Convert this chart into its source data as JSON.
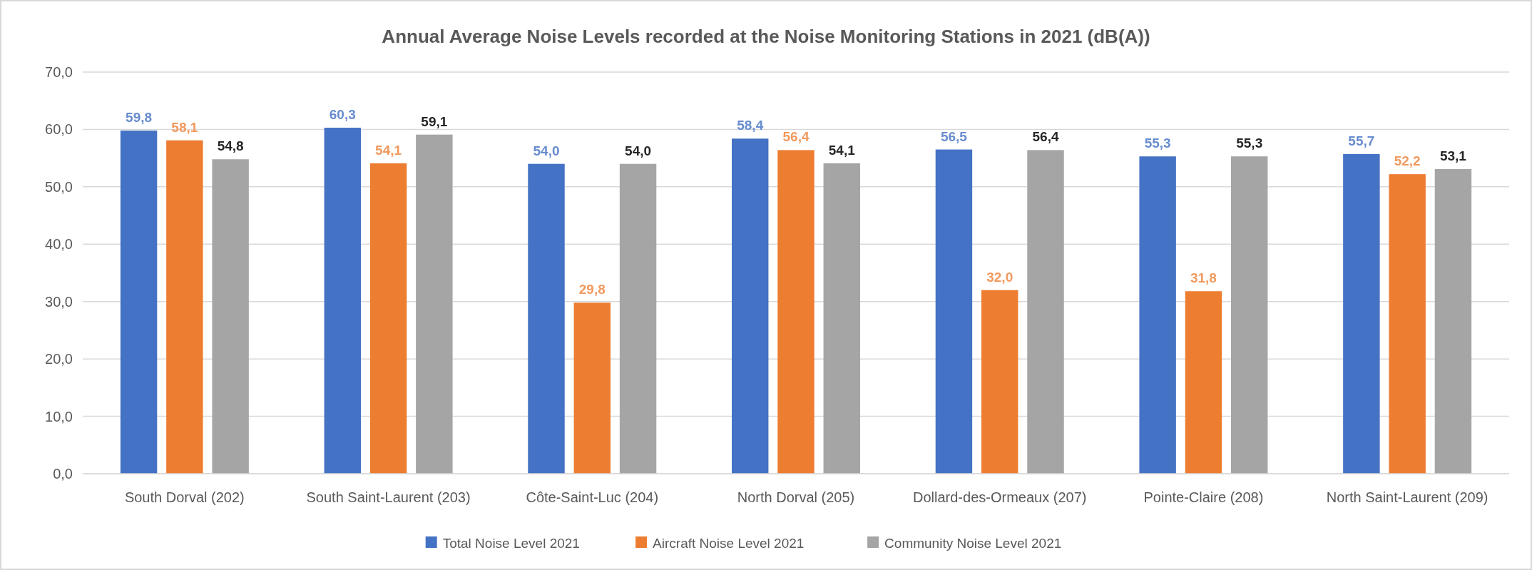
{
  "chart_data": {
    "type": "bar",
    "title": "Annual  Average Noise Levels recorded at the Noise Monitoring Stations in 2021 (dB(A))",
    "categories": [
      "South Dorval (202)",
      "South Saint-Laurent (203)",
      "Côte-Saint-Luc (204)",
      "North Dorval (205)",
      "Dollard-des-Ormeaux (207)",
      "Pointe-Claire (208)",
      "North Saint-Laurent (209)"
    ],
    "series": [
      {
        "name": "Total Noise Level 2021",
        "color": "#4472c4",
        "values": [
          59.8,
          60.3,
          54.0,
          58.4,
          56.5,
          55.3,
          55.7
        ],
        "value_labels": [
          "59,8",
          "60,3",
          "54,0",
          "58,4",
          "56,5",
          "55,3",
          "55,7"
        ]
      },
      {
        "name": "Aircraft Noise Level 2021",
        "color": "#ed7d31",
        "values": [
          58.1,
          54.1,
          29.8,
          56.4,
          32.0,
          31.8,
          52.2
        ],
        "value_labels": [
          "58,1",
          "54,1",
          "29,8",
          "56,4",
          "32,0",
          "31,8",
          "52,2"
        ]
      },
      {
        "name": "Community Noise Level 2021",
        "color": "#a5a5a5",
        "values": [
          54.8,
          59.1,
          54.0,
          54.1,
          56.4,
          55.3,
          53.1
        ],
        "value_labels": [
          "54,8",
          "59,1",
          "54,0",
          "54,1",
          "56,4",
          "55,3",
          "53,1"
        ]
      }
    ],
    "ylim": [
      0,
      70
    ],
    "yticks": [
      {
        "value": 0,
        "label": "0,0"
      },
      {
        "value": 10,
        "label": "10,0"
      },
      {
        "value": 20,
        "label": "20,0"
      },
      {
        "value": 30,
        "label": "30,0"
      },
      {
        "value": 40,
        "label": "40,0"
      },
      {
        "value": 50,
        "label": "50,0"
      },
      {
        "value": 60,
        "label": "60,0"
      },
      {
        "value": 70,
        "label": "70,0"
      }
    ],
    "grid": "y",
    "legend": "bottom"
  }
}
